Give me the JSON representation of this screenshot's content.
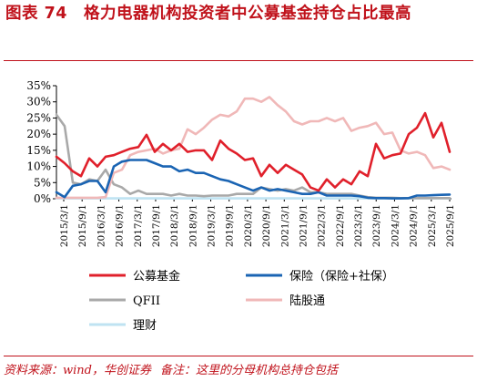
{
  "title": {
    "figure_no": "图表 74",
    "text": "格力电器机构投资者中公募基金持仓占比最高"
  },
  "footer": {
    "source": "资料来源：wind，华创证券",
    "note": "备注：这里的分母机构总持仓包括"
  },
  "colors": {
    "fund": "#e0202b",
    "insurance": "#1a64b3",
    "qfii": "#a9a9a9",
    "hk": "#f0b8b8",
    "wealth": "#bfe3f2",
    "accent": "#c0121b"
  },
  "chart_data": {
    "type": "line",
    "ylim": [
      0,
      35
    ],
    "yticks": [
      "0%",
      "5%",
      "10%",
      "15%",
      "20%",
      "25%",
      "30%",
      "35%"
    ],
    "xtick_labels": [
      "2015/3/1",
      "2015/9/1",
      "2016/3/1",
      "2016/9/1",
      "2017/3/1",
      "2017/9/1",
      "2018/3/1",
      "2018/9/1",
      "2019/3/1",
      "2019/9/1",
      "2020/3/1",
      "2020/9/1",
      "2021/3/1",
      "2021/9/1",
      "2022/3/1",
      "2022/9/1",
      "2023/3/1",
      "2023/9/1",
      "2024/3/1",
      "2024/9/1",
      "2025/3/1",
      "2025/9/1"
    ],
    "legend_placement": "bottom",
    "series": [
      {
        "key": "fund",
        "name": "公募基金",
        "values": [
          13.0,
          11.0,
          8.5,
          7.0,
          12.5,
          10.0,
          13.0,
          13.5,
          14.5,
          15.5,
          16.0,
          19.8,
          14.5,
          17.0,
          15.0,
          17.0,
          14.5,
          15.0,
          15.0,
          12.0,
          18.0,
          15.5,
          14.0,
          12.0,
          12.5,
          7.0,
          10.5,
          8.0,
          10.5,
          9.0,
          7.5,
          3.5,
          2.5,
          6.0,
          3.5,
          6.0,
          4.5,
          8.5,
          7.0,
          17.0,
          12.5,
          13.5,
          14.0,
          20.0,
          22.0,
          26.5,
          19.0,
          23.5,
          14.5
        ]
      },
      {
        "key": "insurance",
        "name": "保险（保险+社保）",
        "values": [
          2.0,
          0.5,
          4.0,
          4.5,
          5.5,
          5.5,
          2.0,
          10.0,
          11.5,
          12.0,
          12.0,
          12.0,
          11.0,
          10.0,
          10.0,
          8.5,
          9.0,
          8.0,
          8.0,
          7.0,
          6.0,
          5.5,
          4.5,
          3.5,
          2.5,
          3.5,
          2.5,
          3.0,
          2.5,
          2.0,
          1.5,
          1.5,
          2.0,
          1.0,
          1.0,
          1.0,
          1.0,
          0.8,
          0.3,
          0.2,
          0.2,
          0.1,
          0.1,
          0.2,
          1.0,
          1.0,
          1.1,
          1.2,
          1.3
        ]
      },
      {
        "key": "qfii",
        "name": "QFII",
        "values": [
          26.0,
          22.5,
          5.0,
          4.5,
          6.0,
          5.5,
          9.0,
          4.5,
          3.5,
          1.5,
          2.5,
          1.5,
          1.5,
          1.5,
          1.0,
          1.5,
          1.0,
          1.0,
          0.8,
          1.0,
          1.0,
          1.0,
          1.5,
          1.5,
          1.5,
          3.5,
          3.0,
          2.5,
          3.0,
          2.5,
          3.5,
          2.0,
          2.0,
          1.5,
          1.5,
          1.5,
          1.5,
          1.0,
          0.5,
          0.3,
          0.3,
          0.3,
          0.2,
          0.2,
          0.2,
          0.2,
          0.2,
          0.2,
          0.2
        ]
      },
      {
        "key": "hk",
        "name": "陆股通",
        "values": [
          0.3,
          0.3,
          0.3,
          0.3,
          0.3,
          0.3,
          0.5,
          8.0,
          9.0,
          13.5,
          14.5,
          15.0,
          15.5,
          14.0,
          15.0,
          15.5,
          21.5,
          20.0,
          22.0,
          24.5,
          26.0,
          25.5,
          27.0,
          31.0,
          31.0,
          30.0,
          31.5,
          29.0,
          27.0,
          24.0,
          23.0,
          24.0,
          24.0,
          25.0,
          24.0,
          25.0,
          21.0,
          22.0,
          22.5,
          23.5,
          20.0,
          20.5,
          15.0,
          14.0,
          14.5,
          13.5,
          9.5,
          10.0,
          9.0
        ]
      },
      {
        "key": "wealth",
        "name": "理财",
        "values": [
          0.1,
          0.1,
          0.1,
          0.1,
          0.1,
          0.1,
          0.1,
          0.1,
          0.1,
          0.1,
          0.1,
          0.1,
          0.1,
          0.1,
          0.1,
          0.1,
          0.1,
          0.1,
          0.1,
          0.1,
          0.1,
          0.1,
          0.1,
          0.1,
          0.1,
          0.1,
          0.1,
          0.1,
          0.1,
          0.1,
          0.1,
          0.1,
          0.1,
          0.1,
          0.1,
          0.1,
          0.1,
          0.1,
          0.1,
          0.1,
          0.1,
          0.1,
          0.1,
          0.1,
          0.1,
          0.1,
          0.1,
          0.1,
          0.1
        ]
      }
    ]
  }
}
